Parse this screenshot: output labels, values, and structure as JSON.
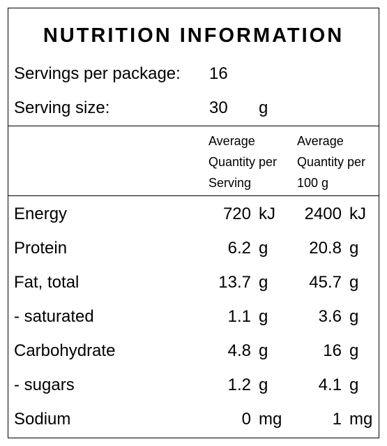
{
  "title": "NUTRITION INFORMATION",
  "servings_per_package": {
    "label": "Servings per package:",
    "value": "16"
  },
  "serving_size": {
    "label": "Serving size:",
    "value": "30",
    "unit": "g"
  },
  "columns": {
    "per_serving": [
      "Average",
      "Quantity per",
      "Serving"
    ],
    "per_100g": [
      "Average",
      "Quantity per",
      "100 g"
    ]
  },
  "rows": [
    {
      "name": "Energy",
      "serving": "720",
      "serving_unit": "kJ",
      "per100": "2400",
      "per100_unit": "kJ"
    },
    {
      "name": "Protein",
      "serving": "6.2",
      "serving_unit": "g",
      "per100": "20.8",
      "per100_unit": "g"
    },
    {
      "name": "Fat, total",
      "serving": "13.7",
      "serving_unit": "g",
      "per100": "45.7",
      "per100_unit": "g"
    },
    {
      "name": "- saturated",
      "serving": "1.1",
      "serving_unit": "g",
      "per100": "3.6",
      "per100_unit": "g"
    },
    {
      "name": "Carbohydrate",
      "serving": "4.8",
      "serving_unit": "g",
      "per100": "16",
      "per100_unit": "g"
    },
    {
      "name": "- sugars",
      "serving": "1.2",
      "serving_unit": "g",
      "per100": "4.1",
      "per100_unit": "g"
    },
    {
      "name": "Sodium",
      "serving": "0",
      "serving_unit": "mg",
      "per100": "1",
      "per100_unit": "mg"
    }
  ]
}
